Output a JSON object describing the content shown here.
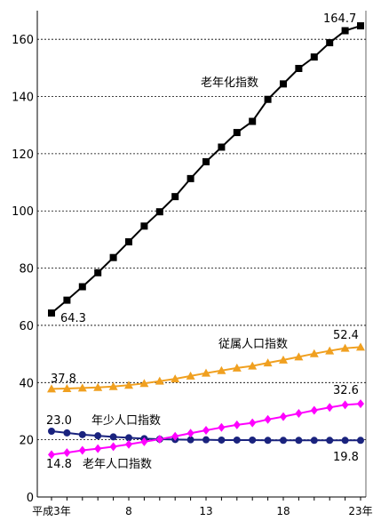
{
  "chart_data": {
    "type": "line",
    "x_tick_labels": [
      "平成3年",
      "8",
      "13",
      "18",
      "23年"
    ],
    "x": [
      3,
      4,
      5,
      6,
      7,
      8,
      9,
      10,
      11,
      12,
      13,
      14,
      15,
      16,
      17,
      18,
      19,
      20,
      21,
      22,
      23
    ],
    "xlim": [
      3,
      23
    ],
    "ylim": [
      0,
      170
    ],
    "y_ticks": [
      0,
      20,
      40,
      60,
      80,
      100,
      120,
      140,
      160
    ],
    "grid": "horizontal-dashed",
    "series": [
      {
        "name": "老年化指数",
        "marker": "square",
        "color": "#000000",
        "values": [
          64.3,
          68.8,
          73.5,
          78.4,
          83.7,
          89.2,
          94.7,
          99.7,
          105.0,
          111.3,
          117.2,
          122.3,
          127.4,
          131.3,
          139.0,
          144.4,
          149.8,
          153.8,
          158.8,
          163.0,
          164.7
        ]
      },
      {
        "name": "従属人口指数",
        "marker": "triangle",
        "color": "#f0a020",
        "values": [
          37.8,
          37.9,
          38.1,
          38.3,
          38.6,
          39.1,
          39.7,
          40.5,
          41.3,
          42.3,
          43.3,
          44.2,
          45.1,
          45.8,
          46.9,
          47.9,
          49.0,
          50.1,
          51.1,
          52.0,
          52.4
        ]
      },
      {
        "name": "年少人口指数",
        "marker": "circle",
        "color": "#1a237e",
        "values": [
          23.0,
          22.4,
          21.8,
          21.4,
          21.0,
          20.7,
          20.4,
          20.2,
          20.1,
          20.0,
          20.0,
          19.9,
          19.9,
          19.9,
          19.8,
          19.8,
          19.8,
          19.8,
          19.8,
          19.8,
          19.8
        ]
      },
      {
        "name": "老年人口指数",
        "marker": "diamond",
        "color": "#ff00ff",
        "values": [
          14.8,
          15.5,
          16.3,
          16.9,
          17.6,
          18.4,
          19.3,
          20.2,
          21.2,
          22.3,
          23.3,
          24.3,
          25.2,
          25.9,
          27.1,
          28.1,
          29.2,
          30.3,
          31.3,
          32.2,
          32.6
        ]
      }
    ],
    "annotations": [
      {
        "series": 0,
        "point": "first",
        "text": "64.3"
      },
      {
        "series": 0,
        "point": "last",
        "text": "164.7"
      },
      {
        "series": 1,
        "point": "first",
        "text": "37.8"
      },
      {
        "series": 1,
        "point": "last",
        "text": "52.4"
      },
      {
        "series": 2,
        "point": "first",
        "text": "23.0"
      },
      {
        "series": 2,
        "point": "last",
        "text": "19.8"
      },
      {
        "series": 3,
        "point": "first",
        "text": "14.8"
      },
      {
        "series": 3,
        "point": "last",
        "text": "32.6"
      }
    ]
  }
}
